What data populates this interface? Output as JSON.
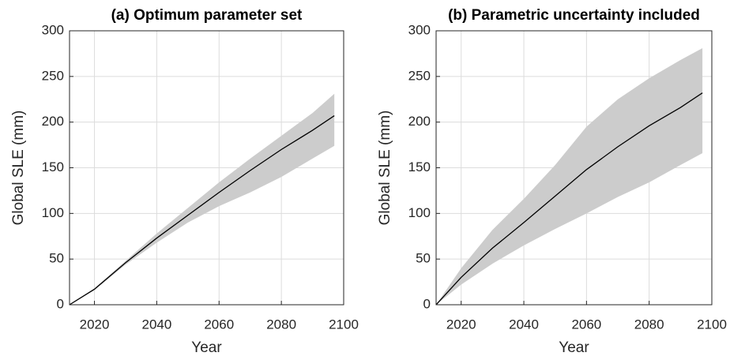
{
  "chart_data": [
    {
      "type": "line",
      "title": "(a) Optimum parameter set",
      "x_label": "Year",
      "y_label": "Global SLE (mm)",
      "x": [
        2012,
        2020,
        2030,
        2040,
        2050,
        2060,
        2070,
        2080,
        2090,
        2097
      ],
      "values": [
        0,
        17,
        46,
        73,
        98,
        123,
        147,
        170,
        191,
        207
      ],
      "lower": [
        0,
        16,
        44,
        68,
        90,
        108,
        123,
        140,
        160,
        174
      ],
      "upper": [
        0,
        18,
        48,
        78,
        106,
        134,
        160,
        185,
        210,
        231
      ],
      "color": "#000000",
      "band_color": "#cccccc",
      "xlim": [
        2012,
        2100
      ],
      "xticks": [
        2020,
        2040,
        2060,
        2080,
        2100
      ],
      "ylim": [
        0,
        300
      ],
      "yticks": [
        0,
        50,
        100,
        150,
        200,
        250,
        300
      ],
      "grid": true
    },
    {
      "type": "line",
      "title": "(b) Parametric uncertainty included",
      "x_label": "Year",
      "y_label": "Global SLE (mm)",
      "x": [
        2012,
        2020,
        2030,
        2040,
        2050,
        2060,
        2070,
        2080,
        2090,
        2097
      ],
      "values": [
        0,
        30,
        62,
        90,
        119,
        148,
        173,
        196,
        216,
        232
      ],
      "lower": [
        0,
        22,
        45,
        65,
        83,
        100,
        118,
        134,
        153,
        166
      ],
      "upper": [
        0,
        40,
        82,
        116,
        153,
        195,
        225,
        248,
        268,
        281
      ],
      "color": "#000000",
      "band_color": "#cccccc",
      "xlim": [
        2012,
        2100
      ],
      "xticks": [
        2020,
        2040,
        2060,
        2080,
        2100
      ],
      "ylim": [
        0,
        300
      ],
      "yticks": [
        0,
        50,
        100,
        150,
        200,
        250,
        300
      ],
      "grid": true
    }
  ]
}
